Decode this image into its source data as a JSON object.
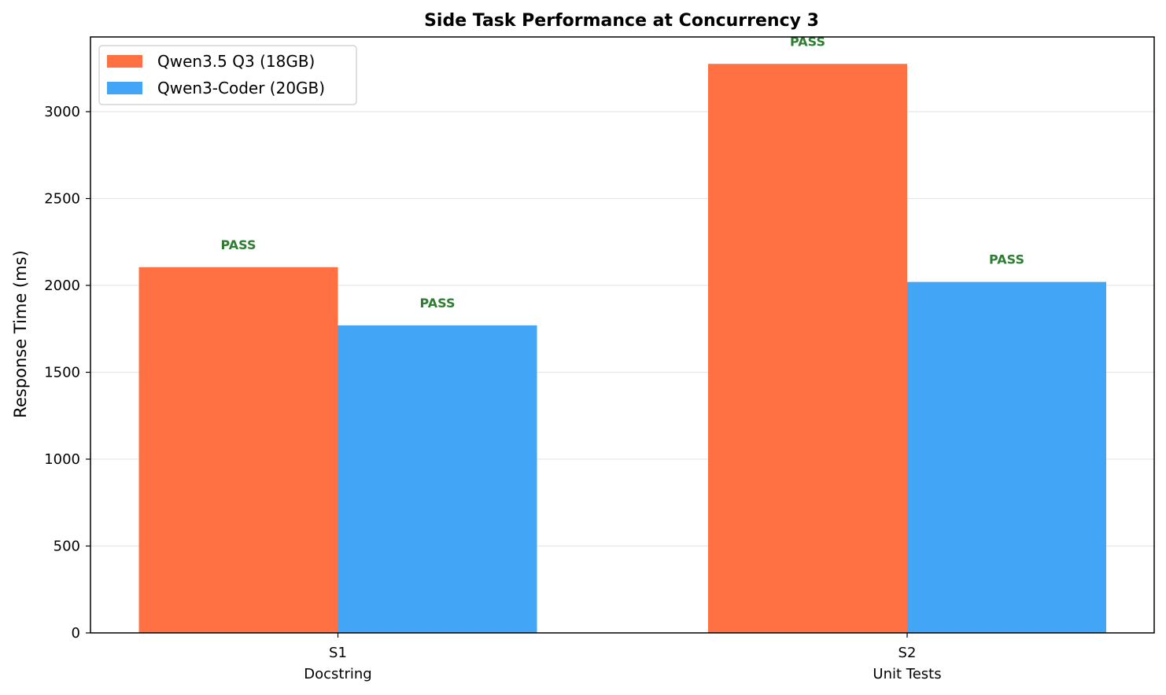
{
  "chart_data": {
    "type": "bar",
    "title": "Side Task Performance at Concurrency 3",
    "xlabel": "",
    "ylabel": "Response Time (ms)",
    "ylim": [
      0,
      3430
    ],
    "yticks": [
      0,
      500,
      1000,
      1500,
      2000,
      2500,
      3000
    ],
    "grid": "horizontal",
    "legend_position": "top-left",
    "categories": [
      {
        "code": "S1",
        "name": "Docstring"
      },
      {
        "code": "S2",
        "name": "Unit Tests"
      }
    ],
    "series": [
      {
        "name": "Qwen3.5 Q3 (18GB)",
        "color": "#ff7043",
        "values": [
          2105,
          3275
        ],
        "status": [
          "PASS",
          "PASS"
        ]
      },
      {
        "name": "Qwen3-Coder (20GB)",
        "color": "#42a5f5",
        "values": [
          1770,
          2020
        ],
        "status": [
          "PASS",
          "PASS"
        ]
      }
    ],
    "status_color": "#2e7d32"
  }
}
